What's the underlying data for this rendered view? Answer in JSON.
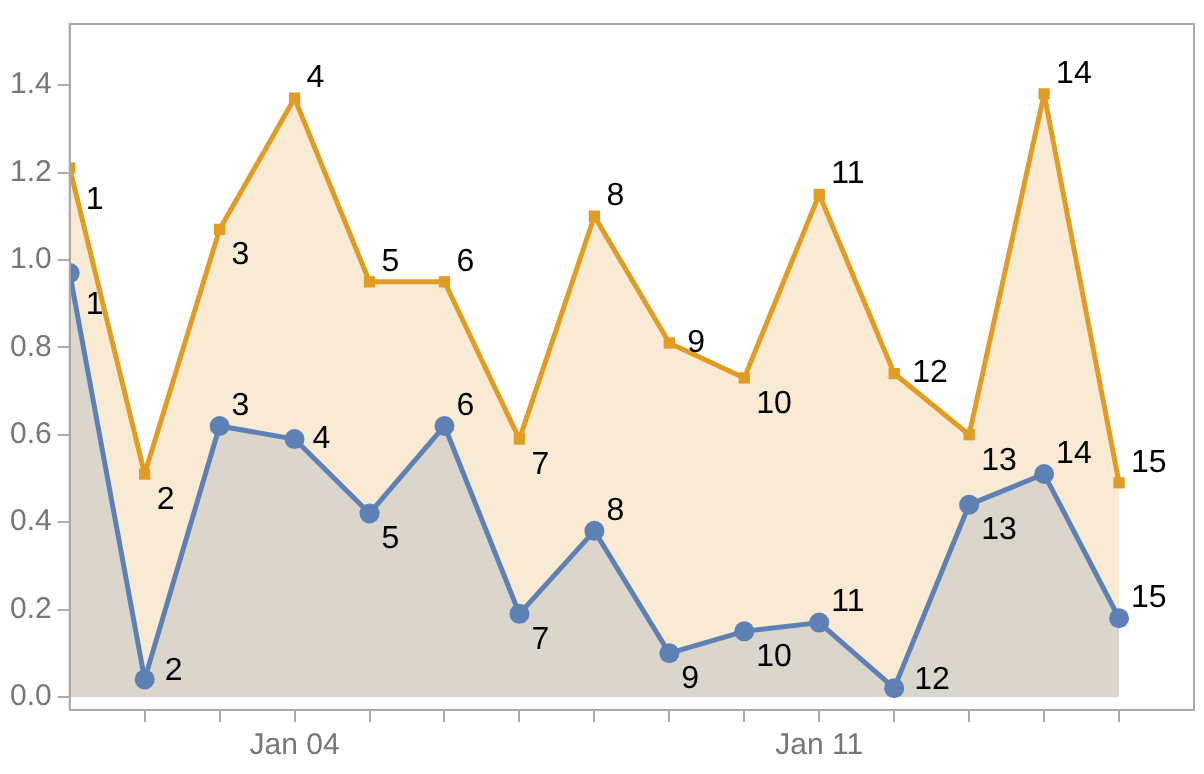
{
  "chart_data": {
    "type": "area",
    "x": [
      "--01-01",
      "--01-02",
      "--01-03",
      "--01-04",
      "--01-05",
      "--01-06",
      "--01-07",
      "--01-08",
      "--01-09",
      "--01-10",
      "--01-11",
      "--01-12",
      "--01-13",
      "--01-14",
      "--01-15"
    ],
    "series": [
      {
        "color": "#e19c24",
        "marker": "square",
        "values": [
          1.21,
          0.51,
          1.07,
          1.37,
          0.95,
          0.95,
          0.59,
          1.1,
          0.81,
          0.73,
          1.15,
          0.74,
          0.6,
          1.38,
          0.49
        ]
      },
      {
        "color": "#5e81b5",
        "marker": "circle",
        "values": [
          0.97,
          0.04,
          0.62,
          0.59,
          0.42,
          0.62,
          0.19,
          0.38,
          0.1,
          0.15,
          0.17,
          0.02,
          0.44,
          0.51,
          0.18
        ]
      }
    ],
    "xlim": [
      "--01-01",
      "--01-16"
    ],
    "xticks": [
      {
        "value": "--01-02",
        "label": null
      },
      {
        "value": "--01-03",
        "label": null
      },
      {
        "value": "--01-04",
        "label": "Jan 04"
      },
      {
        "value": "--01-05",
        "label": null
      },
      {
        "value": "--01-06",
        "label": null
      },
      {
        "value": "--01-07",
        "label": null
      },
      {
        "value": "--01-08",
        "label": null
      },
      {
        "value": "--01-09",
        "label": null
      },
      {
        "value": "--01-10",
        "label": null
      },
      {
        "value": "--01-11",
        "label": "Jan 11"
      },
      {
        "value": "--01-12",
        "label": null
      },
      {
        "value": "--01-13",
        "label": null
      },
      {
        "value": "--01-14",
        "label": null
      },
      {
        "value": "--01-15",
        "label": null
      }
    ],
    "ylim": [
      -0.03,
      1.54
    ],
    "yticks": [
      {
        "value": 0,
        "label": "0.0"
      },
      {
        "value": 0.2,
        "label": "0.2"
      },
      {
        "value": 0.4,
        "label": "0.4"
      },
      {
        "value": 0.6,
        "label": "0.6"
      },
      {
        "value": 0.8,
        "label": "0.8"
      },
      {
        "value": 1,
        "label": "1.0"
      },
      {
        "value": 1.2,
        "label": "1.2"
      },
      {
        "value": 1.4,
        "label": "1.4"
      }
    ],
    "grid": false,
    "legend": false,
    "annotations": [
      {
        "text": "1",
        "x": "--01-01",
        "y": 1.21
      },
      {
        "text": "2",
        "x": "--01-02",
        "y": 0.51
      },
      {
        "text": "3",
        "x": "--01-03",
        "y": 1.07
      },
      {
        "text": "4",
        "x": "--01-04",
        "y": 1.37
      },
      {
        "text": "5",
        "x": "--01-05",
        "y": 0.95
      },
      {
        "text": "6",
        "x": "--01-06",
        "y": 0.95
      },
      {
        "text": "7",
        "x": "--01-07",
        "y": 0.59
      },
      {
        "text": "8",
        "x": "--01-08",
        "y": 1.1
      },
      {
        "text": "9",
        "x": "--01-09",
        "y": 0.81
      },
      {
        "text": "10",
        "x": "--01-10",
        "y": 0.73
      },
      {
        "text": "11",
        "x": "--01-11",
        "y": 1.15
      },
      {
        "text": "12",
        "x": "--01-12",
        "y": 0.74
      },
      {
        "text": "13",
        "x": "--01-13",
        "y": 0.6
      },
      {
        "text": "14",
        "x": "--01-14",
        "y": 1.38
      },
      {
        "text": "15",
        "x": "--01-15",
        "y": 0.49
      },
      {
        "text": "1",
        "x": "--01-01",
        "y": 0.97
      },
      {
        "text": "2",
        "x": "--01-02",
        "y": 0.04
      },
      {
        "text": "3",
        "x": "--01-03",
        "y": 0.62
      },
      {
        "text": "4",
        "x": "--01-04",
        "y": 0.59
      },
      {
        "text": "5",
        "x": "--01-05",
        "y": 0.42
      },
      {
        "text": "6",
        "x": "--01-06",
        "y": 0.62
      },
      {
        "text": "7",
        "x": "--01-07",
        "y": 0.19
      },
      {
        "text": "8",
        "x": "--01-08",
        "y": 0.38
      },
      {
        "text": "9",
        "x": "--01-09",
        "y": 0.1
      },
      {
        "text": "10",
        "x": "--01-10",
        "y": 0.15
      },
      {
        "text": "11",
        "x": "--01-11",
        "y": 0.17
      },
      {
        "text": "12",
        "x": "--01-12",
        "y": 0.02
      },
      {
        "text": "13",
        "x": "--01-13",
        "y": 0.44
      },
      {
        "text": "14",
        "x": "--01-14",
        "y": 0.51
      },
      {
        "text": "15",
        "x": "--01-15",
        "y": 0.18
      }
    ]
  }
}
